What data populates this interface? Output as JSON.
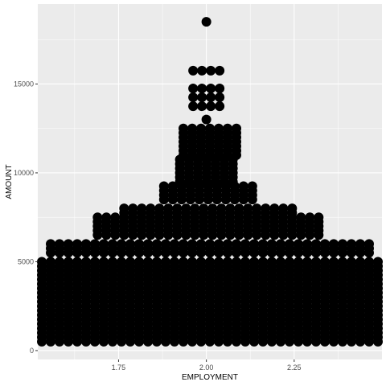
{
  "chart_data": {
    "type": "scatter",
    "xlabel": "EMPLOYMENT",
    "ylabel": "AMOUNT",
    "xlim": [
      1.52,
      2.5
    ],
    "ylim": [
      -500,
      19500
    ],
    "x_ticks": [
      {
        "value": 1.75,
        "label": "1.75"
      },
      {
        "value": 2.0,
        "label": "2.00"
      },
      {
        "value": 2.25,
        "label": "2.25"
      }
    ],
    "y_ticks": [
      {
        "value": 0,
        "label": "0"
      },
      {
        "value": 5000,
        "label": "5000"
      },
      {
        "value": 10000,
        "label": "10000"
      },
      {
        "value": 15000,
        "label": "15000"
      }
    ],
    "grid": true,
    "point_color": "#000000",
    "panel_color": "#ebebeb",
    "grid_color": "#ffffff",
    "dot_bands": [
      {
        "y_from": 500,
        "y_to": 5000,
        "y_step": 250,
        "x_from": 1.52,
        "x_to": 2.5
      },
      {
        "y_from": 5500,
        "y_to": 6000,
        "y_step": 250,
        "x_from": 1.55,
        "x_to": 2.47
      },
      {
        "y_from": 6500,
        "y_to": 7500,
        "y_step": 250,
        "x_from": 1.68,
        "x_to": 2.33
      },
      {
        "y_from": 7750,
        "y_to": 8000,
        "y_step": 250,
        "x_from": 1.76,
        "x_to": 2.25
      },
      {
        "y_from": 8500,
        "y_to": 9250,
        "y_step": 250,
        "x_from": 1.87,
        "x_to": 2.14
      },
      {
        "y_from": 9500,
        "y_to": 10750,
        "y_step": 250,
        "x_from": 1.92,
        "x_to": 2.08
      },
      {
        "y_from": 11000,
        "y_to": 12500,
        "y_step": 250,
        "x_from": 1.93,
        "x_to": 2.09
      },
      {
        "y_from": 13000,
        "y_to": 13000,
        "y_step": 250,
        "x_from": 2.0,
        "x_to": 2.0
      },
      {
        "y_from": 13750,
        "y_to": 14750,
        "y_step": 500,
        "x_from": 1.95,
        "x_to": 2.05
      },
      {
        "y_from": 15750,
        "y_to": 15750,
        "y_step": 250,
        "x_from": 1.95,
        "x_to": 2.05
      }
    ],
    "points": [
      {
        "x": 2.0,
        "y": 18500
      }
    ]
  }
}
